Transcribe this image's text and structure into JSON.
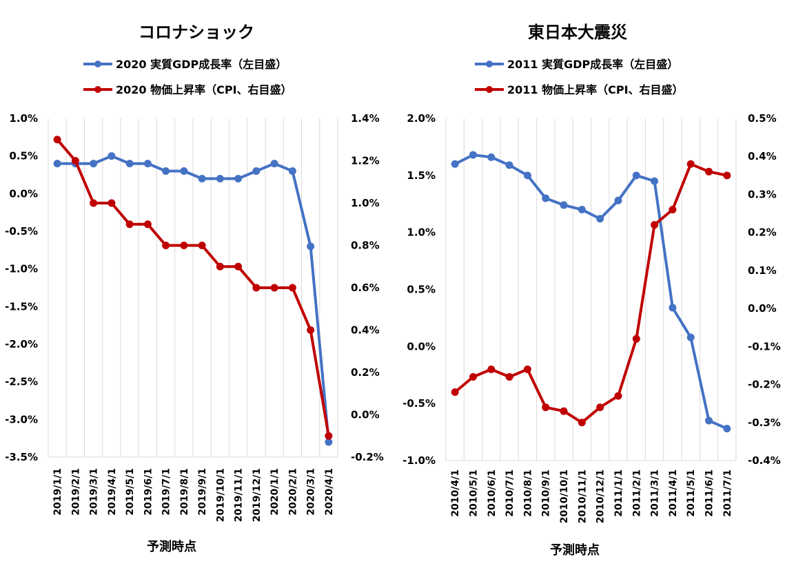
{
  "colors": {
    "blue": "#4472c4",
    "red": "#c00000",
    "grid": "#d9d9d9"
  },
  "chart_data": [
    {
      "type": "line",
      "title": "コロナショック",
      "xlabel": "予測時点",
      "categories": [
        "2019/1/1",
        "2019/2/1",
        "2019/3/1",
        "2019/4/1",
        "2019/5/1",
        "2019/6/1",
        "2019/7/1",
        "2019/8/1",
        "2019/9/1",
        "2019/10/1",
        "2019/11/1",
        "2019/12/1",
        "2020/1/1",
        "2020/2/1",
        "2020/3/1",
        "2020/4/1"
      ],
      "left_axis": {
        "ylim": [
          -3.5,
          1.0
        ],
        "ticks": [
          "1.0%",
          "0.5%",
          "0.0%",
          "-0.5%",
          "-1.0%",
          "-1.5%",
          "-2.0%",
          "-2.5%",
          "-3.0%",
          "-3.5%"
        ]
      },
      "right_axis": {
        "ylim": [
          -0.2,
          1.4
        ],
        "ticks": [
          "1.4%",
          "1.2%",
          "1.0%",
          "0.8%",
          "0.6%",
          "0.4%",
          "0.2%",
          "0.0%",
          "-0.2%"
        ]
      },
      "grid": "vertical",
      "legend_position": "top",
      "series": [
        {
          "name": "2020 実質GDP成長率（左目盛）",
          "axis": "left",
          "color": "#4472c4",
          "values": [
            0.4,
            0.4,
            0.4,
            0.5,
            0.4,
            0.4,
            0.3,
            0.3,
            0.2,
            0.2,
            0.2,
            0.3,
            0.4,
            0.3,
            -0.7,
            -3.3
          ]
        },
        {
          "name": "2020 物価上昇率（CPI、右目盛）",
          "axis": "right",
          "color": "#c00000",
          "values": [
            1.3,
            1.2,
            1.0,
            1.0,
            0.9,
            0.9,
            0.8,
            0.8,
            0.8,
            0.7,
            0.7,
            0.6,
            0.6,
            0.6,
            0.4,
            -0.1
          ]
        }
      ]
    },
    {
      "type": "line",
      "title": "東日本大震災",
      "xlabel": "予測時点",
      "categories": [
        "2010/4/1",
        "2010/5/1",
        "2010/6/1",
        "2010/7/1",
        "2010/8/1",
        "2010/9/1",
        "2010/10/1",
        "2010/11/1",
        "2010/12/1",
        "2011/1/1",
        "2011/2/1",
        "2011/3/1",
        "2011/4/1",
        "2011/5/1",
        "2011/6/1",
        "2011/7/1"
      ],
      "left_axis": {
        "ylim": [
          -1.0,
          2.0
        ],
        "ticks": [
          "2.0%",
          "1.5%",
          "1.0%",
          "0.5%",
          "0.0%",
          "-0.5%",
          "-1.0%"
        ]
      },
      "right_axis": {
        "ylim": [
          -0.4,
          0.5
        ],
        "ticks": [
          "0.5%",
          "0.4%",
          "0.3%",
          "0.2%",
          "0.1%",
          "0.0%",
          "-0.1%",
          "-0.2%",
          "-0.3%",
          "-0.4%"
        ]
      },
      "grid": "vertical",
      "legend_position": "top",
      "series": [
        {
          "name": "2011 実質GDP成長率（左目盛）",
          "axis": "left",
          "color": "#4472c4",
          "values": [
            1.6,
            1.68,
            1.66,
            1.59,
            1.5,
            1.3,
            1.24,
            1.2,
            1.12,
            1.28,
            1.5,
            1.45,
            0.34,
            0.08,
            -0.65,
            -0.72
          ]
        },
        {
          "name": "2011 物価上昇率（CPI、右目盛）",
          "axis": "right",
          "color": "#c00000",
          "values": [
            -0.22,
            -0.18,
            -0.16,
            -0.18,
            -0.16,
            -0.26,
            -0.27,
            -0.3,
            -0.26,
            -0.23,
            -0.08,
            0.22,
            0.26,
            0.38,
            0.36,
            0.35
          ]
        }
      ]
    }
  ]
}
